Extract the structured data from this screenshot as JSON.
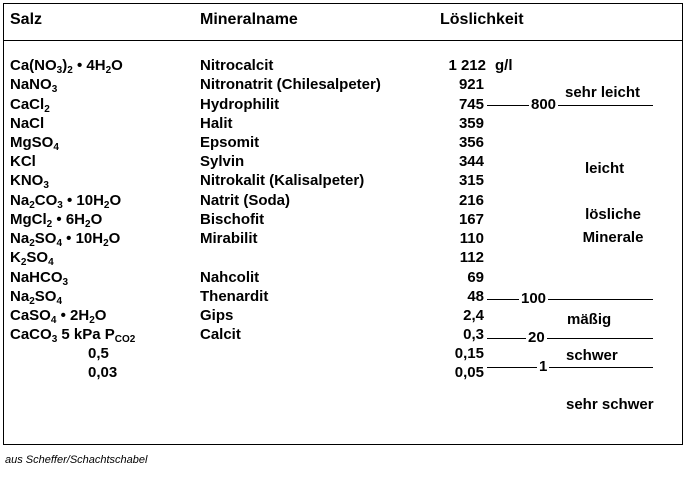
{
  "headers": {
    "salt": "Salz",
    "mineral": "Mineralname",
    "solubility": "Löslichkeit"
  },
  "unit": "g/l",
  "rows": [
    {
      "salt": "Ca(NO₃)₂ • 4H₂O",
      "mineral": "Nitrocalcit",
      "solubility": "1 212"
    },
    {
      "salt": "NaNO₃",
      "mineral": "Nitronatrit (Chilesalpeter)",
      "solubility": "921"
    },
    {
      "salt": "CaCl₂",
      "mineral": "Hydrophilit",
      "solubility": "745"
    },
    {
      "salt": "NaCl",
      "mineral": "Halit",
      "solubility": "359"
    },
    {
      "salt": "MgSO₄",
      "mineral": "Epsomit",
      "solubility": "356"
    },
    {
      "salt": "KCl",
      "mineral": "Sylvin",
      "solubility": "344"
    },
    {
      "salt": "KNO₃",
      "mineral": "Nitrokalit (Kalisalpeter)",
      "solubility": "315"
    },
    {
      "salt": "Na₂CO₃ • 10H₂O",
      "mineral": "Natrit (Soda)",
      "solubility": "216"
    },
    {
      "salt": "MgCl₂ • 6H₂O",
      "mineral": "Bischofit",
      "solubility": "167"
    },
    {
      "salt": "Na₂SO₄ • 10H₂O",
      "mineral": "Mirabilit",
      "solubility": "110"
    },
    {
      "salt": "K₂SO₄",
      "mineral": "",
      "solubility": "112"
    },
    {
      "salt": "NaHCO₃",
      "mineral": "Nahcolit",
      "solubility": "69"
    },
    {
      "salt": "Na₂SO₄",
      "mineral": "Thenardit",
      "solubility": "48"
    },
    {
      "salt": "CaSO₄ • 2H₂O",
      "mineral": "Gips",
      "solubility": "2,4"
    },
    {
      "salt": "CaCO₃   5 kPa P_CO2",
      "mineral": "Calcit",
      "solubility": "0,3"
    },
    {
      "salt": "0,5",
      "mineral": "",
      "solubility": "0,15"
    },
    {
      "salt": "0,03",
      "mineral": "",
      "solubility": "0,05"
    }
  ],
  "thresholds": [
    "800",
    "100",
    "20",
    "1"
  ],
  "categories": {
    "very_easy": "sehr leicht",
    "easy": "leicht",
    "soluble_1": "lösliche",
    "soluble_2": "Minerale",
    "moderate": "mäßig",
    "difficult": "schwer",
    "very_difficult": "sehr schwer"
  },
  "source": "aus Scheffer/Schachtschabel"
}
